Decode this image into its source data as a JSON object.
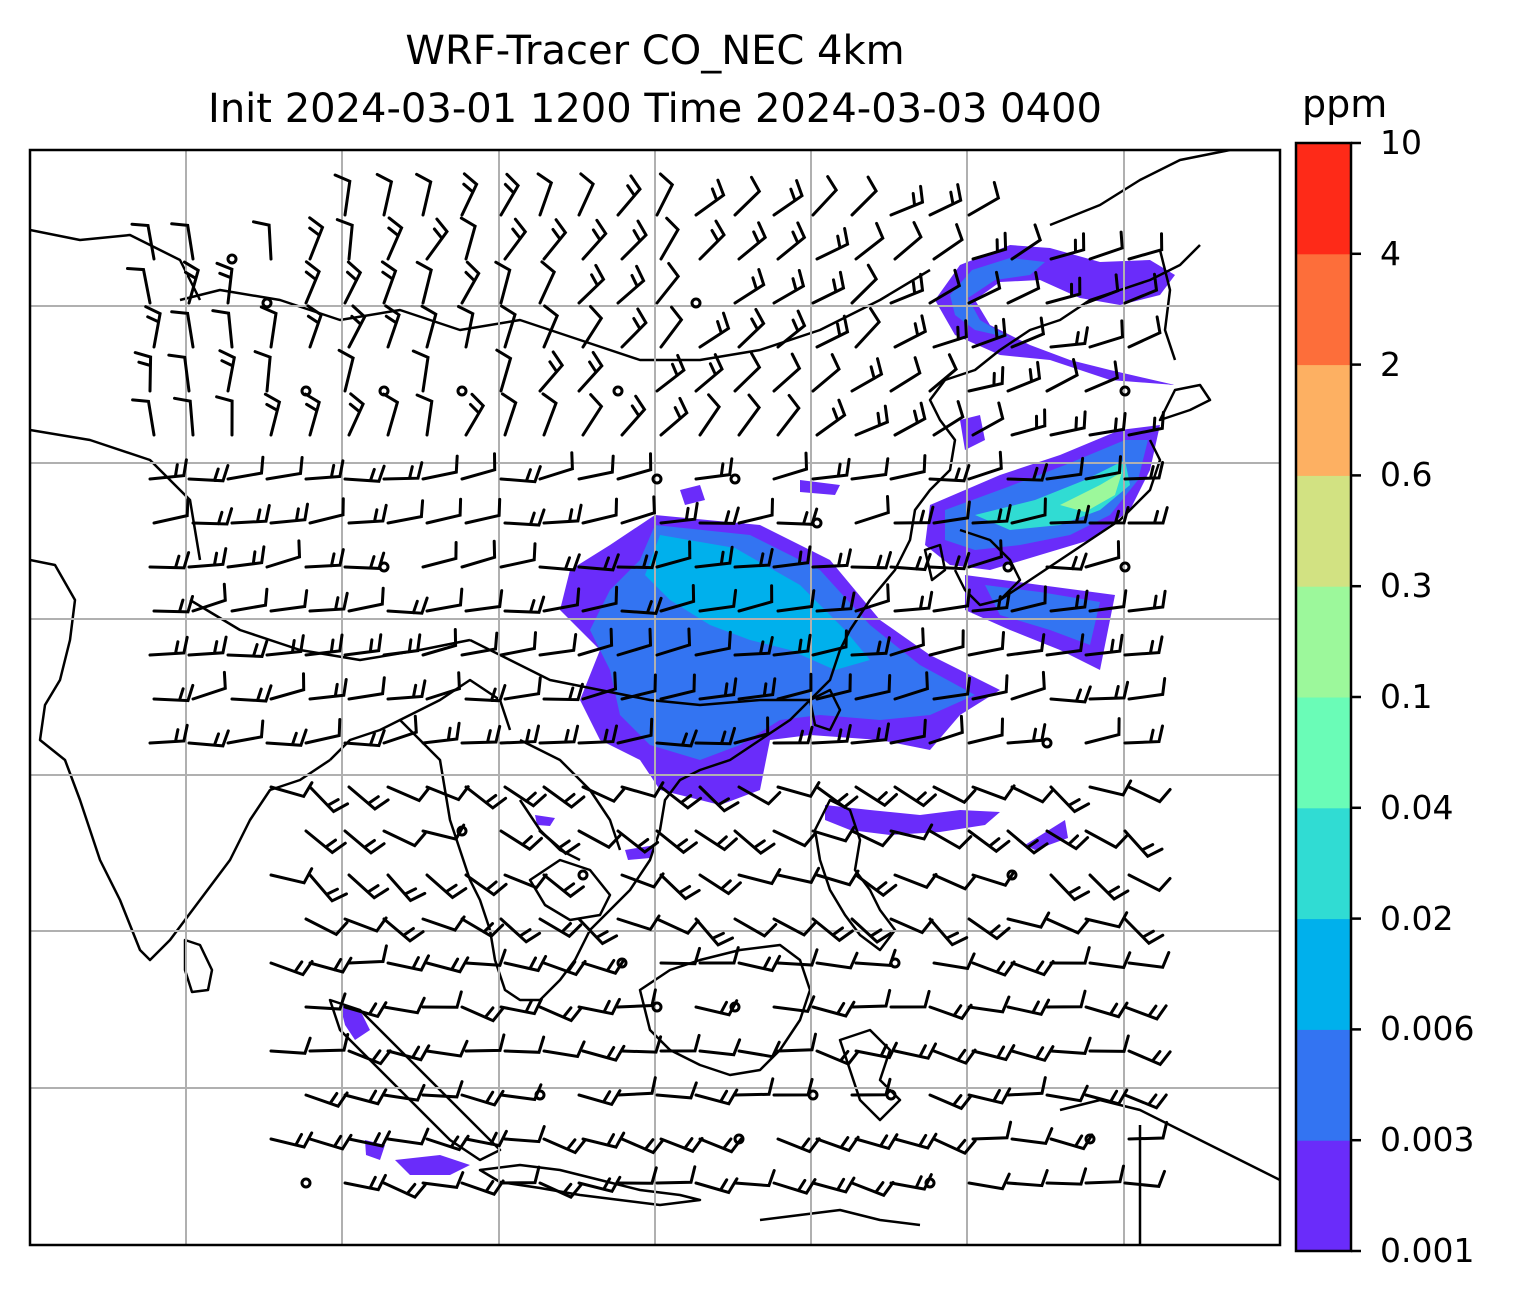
{
  "title_line1": "WRF-Tracer CO_NEC 4km",
  "title_line2": "Init 2024-03-01 1200 Time 2024-03-03 0400",
  "colorbar": {
    "unit": "ppm",
    "levels": [
      "0.001",
      "0.003",
      "0.006",
      "0.02",
      "0.04",
      "0.1",
      "0.3",
      "0.6",
      "2",
      "4",
      "10"
    ],
    "colors": [
      "#6a2cfa",
      "#3374f2",
      "#00b0ec",
      "#30dcd3",
      "#6afcb7",
      "#9cf89b",
      "#d2e282",
      "#fdb062",
      "#fd6e3a",
      "#fe2a18"
    ]
  },
  "map": {
    "gridlines": true,
    "field": "CO tracer concentration with wind barbs"
  }
}
